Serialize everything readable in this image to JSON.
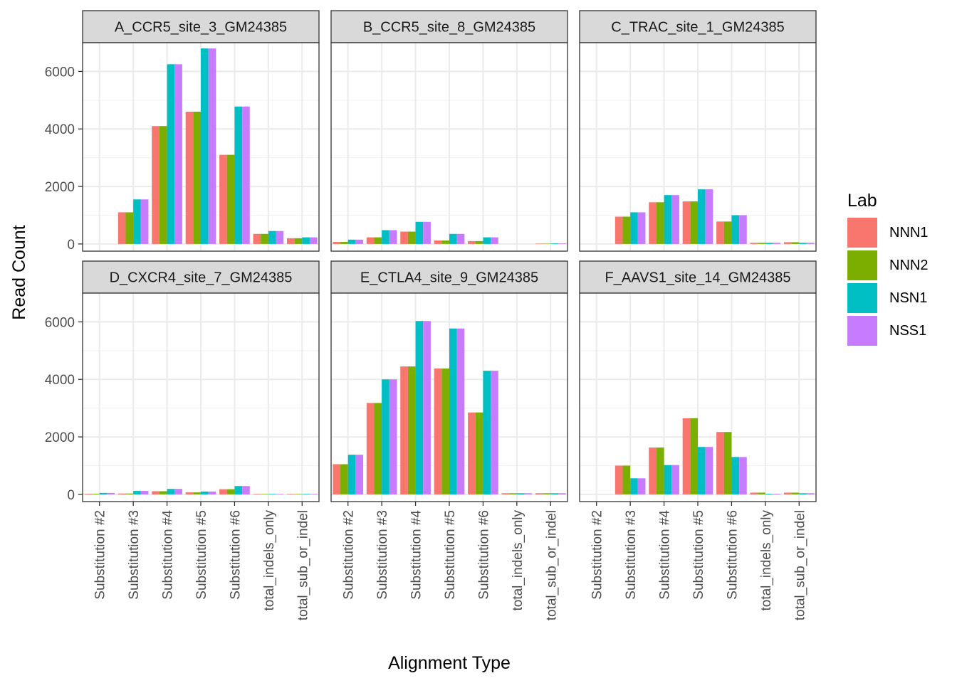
{
  "chart_data": {
    "type": "bar",
    "xlabel": "Alignment  Type",
    "ylabel": "Read Count",
    "ylim": [
      -250,
      7000
    ],
    "y_ticks": [
      0,
      2000,
      4000,
      6000
    ],
    "grid": true,
    "legend_position": "right",
    "legend_title": "Lab",
    "series_names": [
      "NNN1",
      "NNN2",
      "NSN1",
      "NSS1"
    ],
    "series_colors": [
      "#F8766D",
      "#7CAE00",
      "#00BFC4",
      "#C77CFF"
    ],
    "categories": [
      "Substitution #2",
      "Substitution #3",
      "Substitution #4",
      "Substitution #5",
      "Substitution #6",
      "total_indels_only",
      "total_sub_or_indel"
    ],
    "panels": [
      {
        "title": "A_CCR5_site_3_GM24385",
        "series": [
          {
            "name": "NNN1",
            "values": [
              0,
              1100,
              4100,
              4600,
              3100,
              350,
              200
            ]
          },
          {
            "name": "NNN2",
            "values": [
              0,
              1100,
              4100,
              4600,
              3100,
              350,
              200
            ]
          },
          {
            "name": "NSN1",
            "values": [
              0,
              1550,
              6250,
              6800,
              4780,
              450,
              230
            ]
          },
          {
            "name": "NSS1",
            "values": [
              0,
              1550,
              6250,
              6800,
              4780,
              450,
              230
            ]
          }
        ]
      },
      {
        "title": "B_CCR5_site_8_GM24385",
        "series": [
          {
            "name": "NNN1",
            "values": [
              70,
              230,
              430,
              120,
              100,
              0,
              10
            ]
          },
          {
            "name": "NNN2",
            "values": [
              70,
              230,
              430,
              120,
              100,
              0,
              10
            ]
          },
          {
            "name": "NSN1",
            "values": [
              150,
              480,
              770,
              350,
              230,
              0,
              20
            ]
          },
          {
            "name": "NSS1",
            "values": [
              150,
              480,
              770,
              350,
              230,
              0,
              20
            ]
          }
        ]
      },
      {
        "title": "C_TRAC_site_1_GM24385",
        "series": [
          {
            "name": "NNN1",
            "values": [
              0,
              950,
              1450,
              1480,
              780,
              40,
              60
            ]
          },
          {
            "name": "NNN2",
            "values": [
              0,
              950,
              1450,
              1480,
              780,
              40,
              60
            ]
          },
          {
            "name": "NSN1",
            "values": [
              0,
              1100,
              1700,
              1900,
              1000,
              40,
              40
            ]
          },
          {
            "name": "NSS1",
            "values": [
              0,
              1100,
              1700,
              1900,
              1000,
              40,
              40
            ]
          }
        ]
      },
      {
        "title": "D_CXCR4_site_7_GM24385",
        "series": [
          {
            "name": "NNN1",
            "values": [
              20,
              30,
              110,
              70,
              180,
              15,
              15
            ]
          },
          {
            "name": "NNN2",
            "values": [
              20,
              30,
              110,
              70,
              180,
              15,
              15
            ]
          },
          {
            "name": "NSN1",
            "values": [
              50,
              120,
              190,
              100,
              290,
              15,
              15
            ]
          },
          {
            "name": "NSS1",
            "values": [
              50,
              120,
              190,
              100,
              290,
              15,
              15
            ]
          }
        ]
      },
      {
        "title": "E_CTLA4_site_9_GM24385",
        "series": [
          {
            "name": "NNN1",
            "values": [
              1050,
              3180,
              4450,
              4380,
              2850,
              40,
              40
            ]
          },
          {
            "name": "NNN2",
            "values": [
              1050,
              3180,
              4450,
              4380,
              2850,
              40,
              40
            ]
          },
          {
            "name": "NSN1",
            "values": [
              1380,
              4000,
              6030,
              5770,
              4300,
              40,
              40
            ]
          },
          {
            "name": "NSS1",
            "values": [
              1380,
              4000,
              6030,
              5770,
              4300,
              40,
              40
            ]
          }
        ]
      },
      {
        "title": "F_AAVS1_site_14_GM24385",
        "series": [
          {
            "name": "NNN1",
            "values": [
              0,
              1000,
              1630,
              2650,
              2170,
              60,
              60
            ]
          },
          {
            "name": "NNN2",
            "values": [
              0,
              1000,
              1630,
              2650,
              2170,
              60,
              60
            ]
          },
          {
            "name": "NSN1",
            "values": [
              0,
              560,
              1020,
              1650,
              1300,
              20,
              40
            ]
          },
          {
            "name": "NSS1",
            "values": [
              0,
              560,
              1020,
              1650,
              1300,
              20,
              40
            ]
          }
        ]
      }
    ]
  }
}
